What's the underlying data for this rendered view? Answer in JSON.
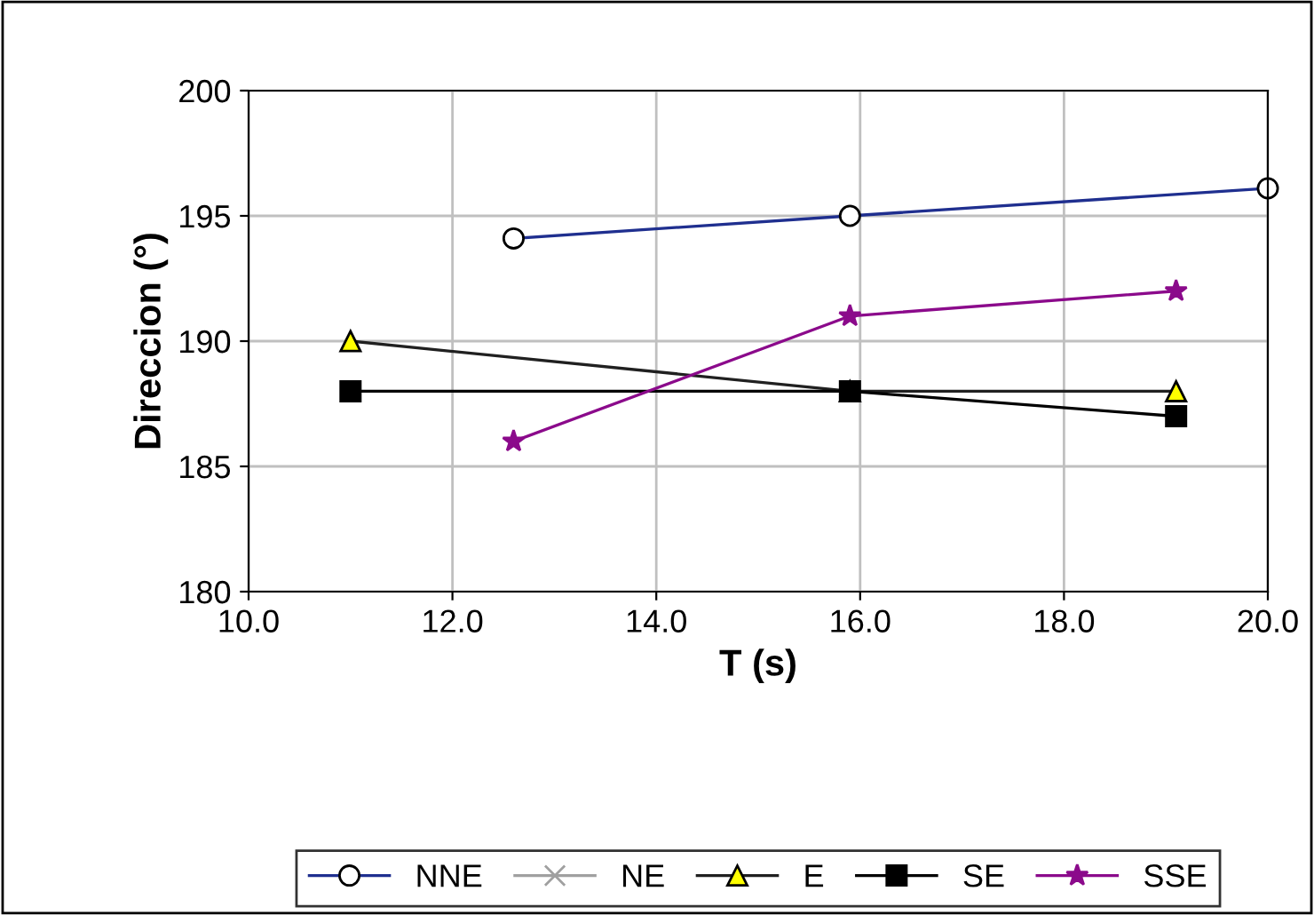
{
  "chart_data": {
    "type": "line",
    "xlabel": "T (s)",
    "ylabel": "Direccion (°)",
    "xlim": [
      10,
      20
    ],
    "xticks": [
      {
        "value": 10,
        "label": "10.0"
      },
      {
        "value": 12,
        "label": "12.0"
      },
      {
        "value": 14,
        "label": "14.0"
      },
      {
        "value": 16,
        "label": "16.0"
      },
      {
        "value": 18,
        "label": "18.0"
      },
      {
        "value": 20,
        "label": "20.0"
      }
    ],
    "ylim": [
      180,
      200
    ],
    "yticks": [
      180,
      185,
      190,
      195,
      200
    ],
    "grid": true,
    "legend": "bottom",
    "series": [
      {
        "name": "NNE",
        "color": "#1f2f8f",
        "marker": "circle",
        "x": [
          12.6,
          15.9,
          20.0
        ],
        "values": [
          194.1,
          195.0,
          196.1
        ]
      },
      {
        "name": "NE",
        "color": "#a0a0a0",
        "marker": "cross"
      },
      {
        "name": "E",
        "color": "#202020",
        "marker": "triangle",
        "x": [
          11.0,
          15.9,
          19.1
        ],
        "values": [
          190.0,
          188.0,
          188.0
        ]
      },
      {
        "name": "SE",
        "color": "#000000",
        "marker": "square",
        "x": [
          11.0,
          15.9,
          19.1
        ],
        "values": [
          188.0,
          188.0,
          187.0
        ]
      },
      {
        "name": "SSE",
        "color": "#8b0a8b",
        "marker": "star",
        "x": [
          12.6,
          15.9,
          19.1
        ],
        "values": [
          186.0,
          191.0,
          192.0
        ]
      }
    ]
  }
}
